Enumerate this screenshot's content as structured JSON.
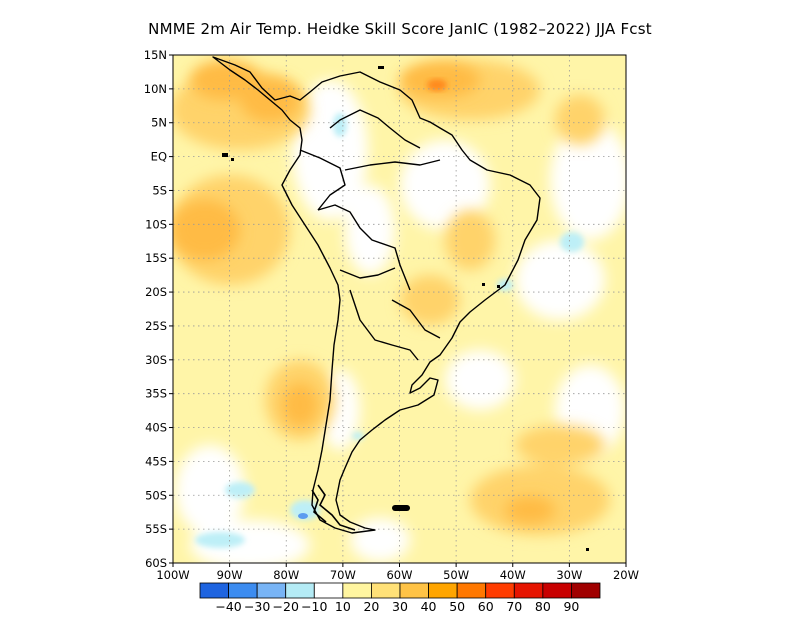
{
  "title": "NMME  2m Air Temp. Heidke Skill Score JanIC (1982–2022) JJA Fcst",
  "map": {
    "lat_labels": [
      "15N",
      "10N",
      "5N",
      "EQ",
      "5S",
      "10S",
      "15S",
      "20S",
      "25S",
      "30S",
      "35S",
      "40S",
      "45S",
      "50S",
      "55S",
      "60S"
    ],
    "lon_labels": [
      "100W",
      "90W",
      "80W",
      "70W",
      "60W",
      "50W",
      "40W",
      "30W",
      "20W"
    ],
    "lat_range": [
      -60,
      15
    ],
    "lon_range": [
      -100,
      -20
    ],
    "grid": "dotted"
  },
  "colorbar": {
    "labels": [
      "-40",
      "-30",
      "-20",
      "-10",
      "10",
      "20",
      "30",
      "40",
      "50",
      "60",
      "70",
      "80",
      "90"
    ],
    "colors": [
      "#1e64e0",
      "#3c8cf0",
      "#78b4f5",
      "#b4ebf5",
      "#ffffff",
      "#fff5a0",
      "#ffe178",
      "#ffc346",
      "#ffa500",
      "#ff7800",
      "#ff3c00",
      "#e61400",
      "#c80000",
      "#a00000"
    ]
  }
}
